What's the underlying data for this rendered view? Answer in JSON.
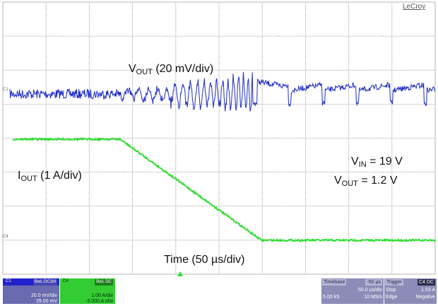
{
  "screen": {
    "brand": "LeCroy",
    "channel_markers": {
      "c1": "C1",
      "c4": "C4"
    }
  },
  "annotations": {
    "vout": {
      "main": "V",
      "sub": "OUT",
      "rest": " (20 mV/div)"
    },
    "iout": {
      "main": "I",
      "sub": "OUT",
      "rest": " (1 A/div)"
    },
    "vin": {
      "main": "V",
      "sub": "IN",
      "rest": " = 19 V"
    },
    "vout_value": {
      "main": "V",
      "sub": "OUT",
      "rest": " = 1.2 V"
    },
    "time": "Time (50 µs/div)"
  },
  "channels": {
    "c1": {
      "name": "C1",
      "coupling": "BwL DC1M",
      "scale": "20.0 mV/div",
      "offset": "29.00 mV"
    },
    "c4": {
      "name": "C4",
      "coupling": "BwL DC",
      "scale": "1.00 A/div",
      "offset": "-3.000 A ofst"
    }
  },
  "timebase": {
    "label": "Timebase",
    "delay": "-50 µs",
    "per_div": "50.0 µs/div",
    "samples": "5.00 kS",
    "rate": "10 MS/s"
  },
  "trigger": {
    "label": "Trigger",
    "source": "C4 DC",
    "mode": "Stop",
    "level": "1.53 A",
    "type": "Edge",
    "slope": "Negative"
  },
  "colors": {
    "grid": "#c8c8c8",
    "grid_major": "#b4b4b4",
    "ch1_trace": "#1f2cc4",
    "ch4_trace": "#33dd33"
  }
}
